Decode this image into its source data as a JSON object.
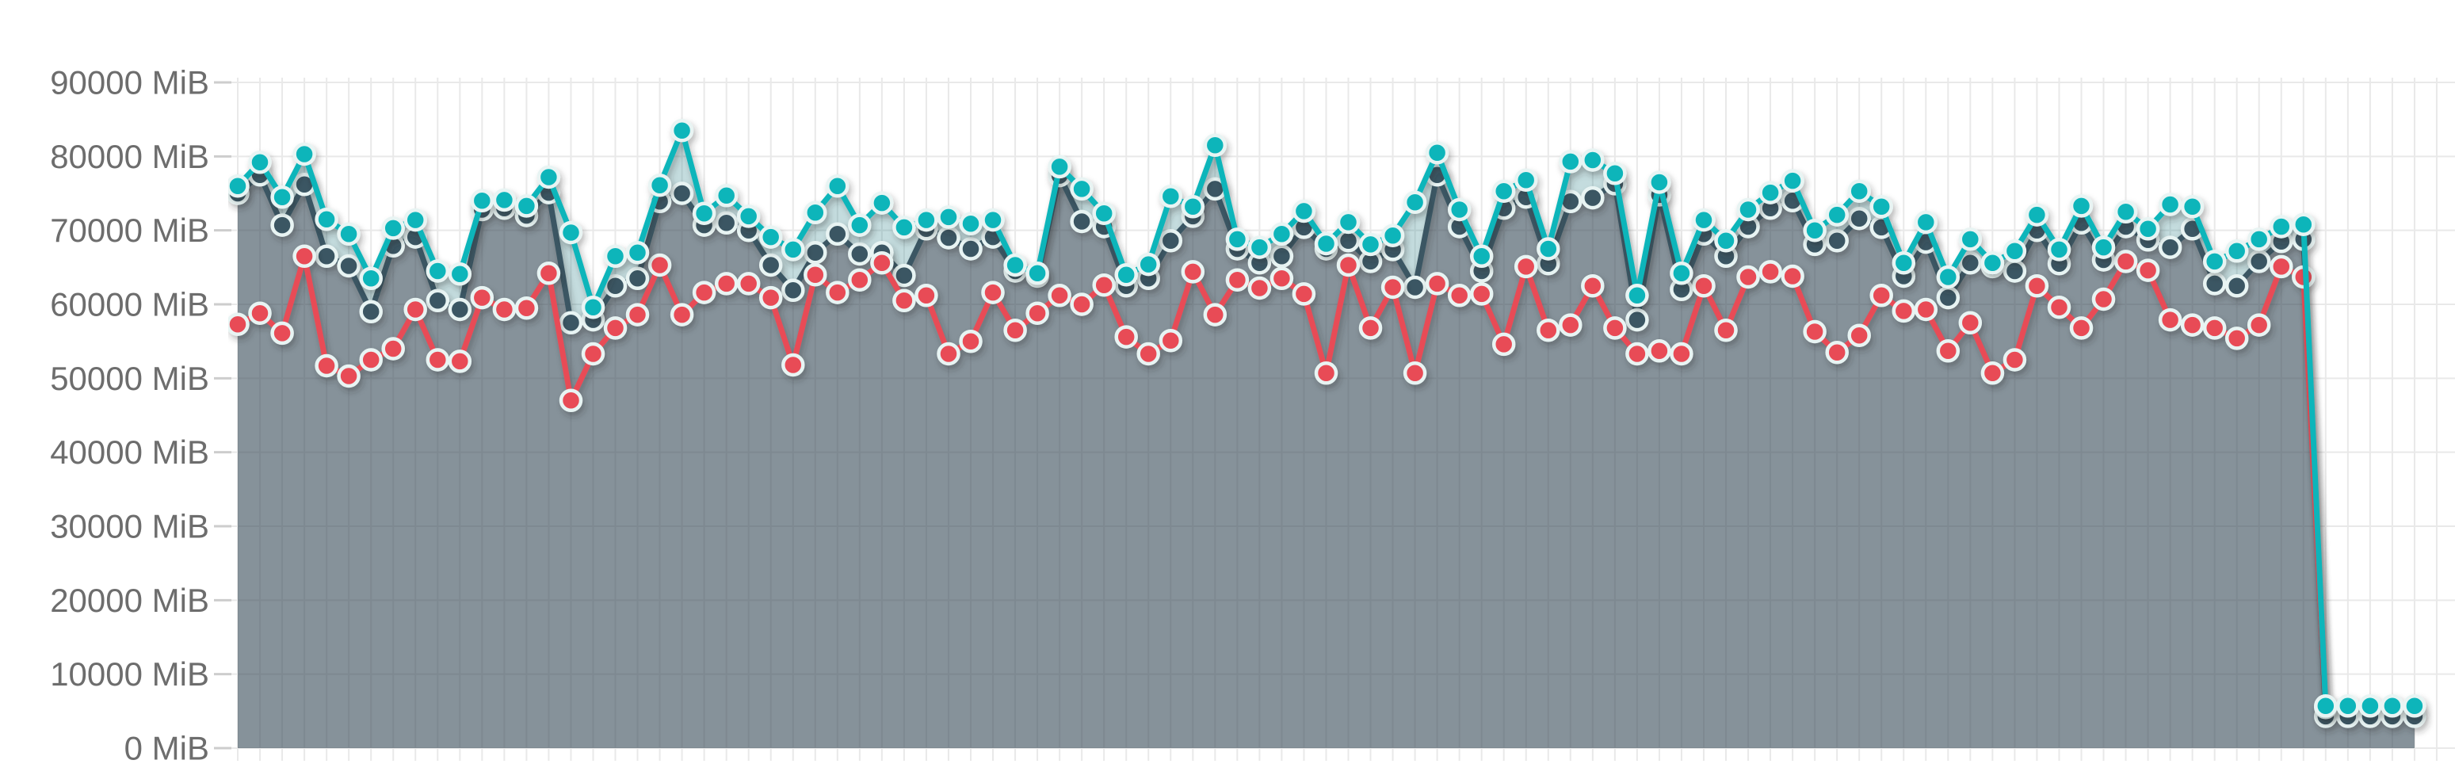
{
  "chart_data": {
    "type": "area",
    "title": "",
    "unit": "MiB",
    "legend": "none",
    "grid": "on",
    "x_axis": {
      "tick_labels": [],
      "point_count": 99
    },
    "y_axis": {
      "min": 0,
      "max": 90000,
      "step": 10000,
      "tick_labels": [
        "0 MiB",
        "10000 MiB",
        "20000 MiB",
        "30000 MiB",
        "40000 MiB",
        "50000 MiB",
        "60000 MiB",
        "70000 MiB",
        "80000 MiB",
        "90000 MiB"
      ]
    },
    "colors": {
      "teal_line": "#10b5ba",
      "dark_line": "#3a5763",
      "red_line": "#e84c57",
      "teal_fill": "rgba(58,140,145,0.30)",
      "dark_fill": "rgba(60,55,70,0.45)",
      "dot_ring": "#e8f4f3",
      "grid_line": "#e9e9e9",
      "axis_tick": "#cdcdcd",
      "label_text": "#6d6d6d"
    },
    "series": [
      {
        "id": "teal",
        "color": "#10b5ba",
        "fill": "rgba(58,140,145,0.30)",
        "values": [
          76000,
          79200,
          74500,
          80300,
          71500,
          69500,
          63500,
          70300,
          71400,
          64500,
          64100,
          74000,
          74100,
          73300,
          77200,
          69700,
          59600,
          66500,
          67000,
          76100,
          83500,
          72300,
          74700,
          71900,
          69100,
          67400,
          72400,
          76000,
          70700,
          73700,
          70400,
          71400,
          71800,
          70900,
          71400,
          65300,
          64200,
          78600,
          75600,
          72300,
          64000,
          65400,
          74600,
          73200,
          81500,
          68800,
          67700,
          69500,
          72600,
          68200,
          71100,
          68100,
          69300,
          73800,
          80500,
          72800,
          66500,
          75300,
          76800,
          67500,
          79300,
          79500,
          77700,
          61200,
          76500,
          64200,
          71400,
          68600,
          72800,
          75100,
          76700,
          70000,
          72100,
          75300,
          73200,
          65600,
          71100,
          63700,
          68800,
          65600,
          67200,
          72100,
          67400,
          73300,
          67700,
          72500,
          70200,
          73500,
          73200,
          65800,
          67200,
          68800,
          70500,
          70800,
          5700,
          5700,
          5700,
          5700,
          5700
        ]
      },
      {
        "id": "dark",
        "color": "#3a5763",
        "fill": "rgba(60,55,70,0.45)",
        "values": [
          75000,
          77500,
          70700,
          76200,
          66500,
          65200,
          59000,
          67900,
          69100,
          60500,
          59300,
          72800,
          73000,
          72000,
          75100,
          57500,
          57900,
          62500,
          63500,
          73900,
          75000,
          70700,
          71000,
          70000,
          65300,
          61900,
          67000,
          69500,
          66800,
          67000,
          63900,
          70200,
          69000,
          67500,
          69100,
          64500,
          63800,
          77400,
          71200,
          70500,
          62500,
          63500,
          68600,
          71900,
          75600,
          67500,
          65600,
          66500,
          70400,
          67500,
          68600,
          65800,
          67400,
          62300,
          77500,
          70500,
          64500,
          73000,
          74500,
          65500,
          73900,
          74400,
          76300,
          57900,
          74800,
          62000,
          69500,
          66500,
          70500,
          73000,
          74000,
          68100,
          68600,
          71600,
          70400,
          63800,
          68400,
          60900,
          65600,
          65100,
          64500,
          70000,
          65500,
          71000,
          66000,
          70500,
          68700,
          67700,
          70200,
          62800,
          62500,
          65800,
          68500,
          68800,
          4300,
          4300,
          4300,
          4300,
          4300
        ]
      },
      {
        "id": "red",
        "color": "#e84c57",
        "fill": "none",
        "values": [
          57300,
          58800,
          56100,
          66500,
          51700,
          50300,
          52500,
          54000,
          59300,
          52500,
          52300,
          60900,
          59300,
          59500,
          64200,
          47000,
          53300,
          56800,
          58600,
          65300,
          58600,
          61600,
          62800,
          62800,
          60900,
          51800,
          64000,
          61600,
          63300,
          65600,
          60500,
          61200,
          53300,
          55000,
          61600,
          56500,
          58800,
          61200,
          60000,
          62600,
          55600,
          53300,
          55100,
          64400,
          58600,
          63300,
          62200,
          63500,
          61400,
          50700,
          65300,
          56800,
          62300,
          50700,
          62800,
          61200,
          61400,
          54600,
          65100,
          56500,
          57200,
          62500,
          56800,
          53300,
          53700,
          53300,
          62500,
          56500,
          63700,
          64400,
          63800,
          56300,
          53500,
          55800,
          61200,
          59100,
          59300,
          53700,
          57500,
          50700,
          52500,
          62500,
          59600,
          56800,
          60700,
          65800,
          64600,
          57900,
          57200,
          56800,
          55400,
          57200,
          65100,
          63700,
          5500
        ]
      }
    ]
  }
}
